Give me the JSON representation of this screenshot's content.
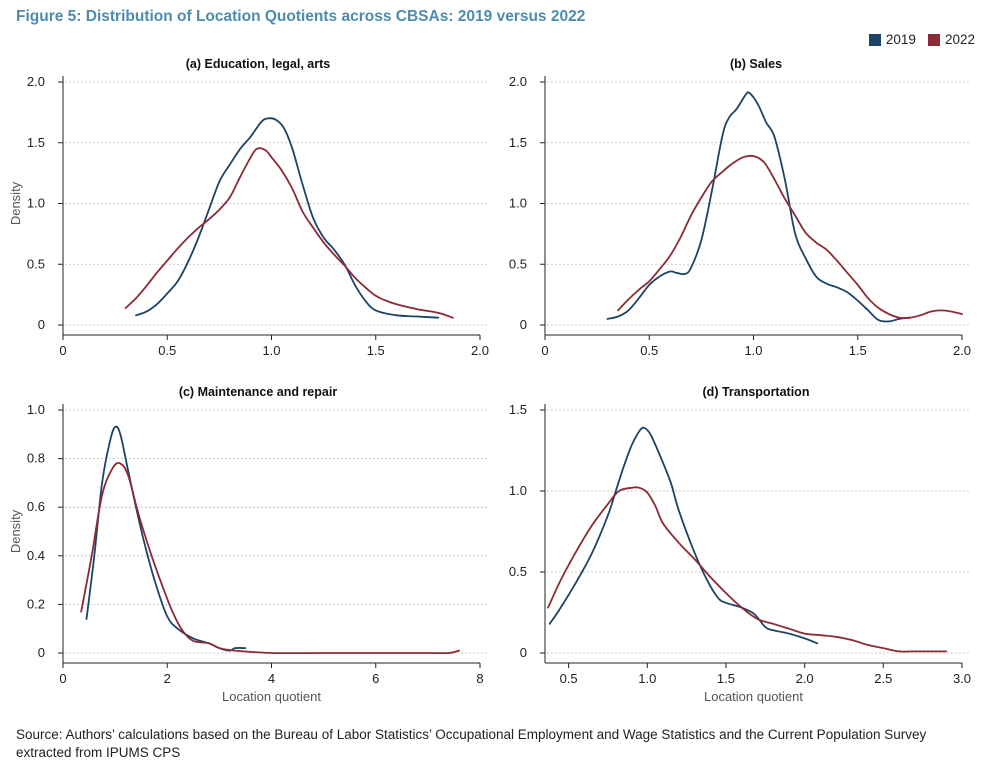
{
  "title": "Figure 5: Distribution of Location Quotients across CBSAs: 2019 versus 2022",
  "colors": {
    "title": "#4e8cab",
    "series_2019": "#1d4466",
    "series_2022": "#8c2a35",
    "grid": "#bdbdbd",
    "axis": "#222222"
  },
  "legend": [
    {
      "label": "2019",
      "color": "#1d4466"
    },
    {
      "label": "2022",
      "color": "#8c2a35"
    }
  ],
  "source": "Source: Authors’ calculations based on the Bureau of Labor Statistics’ Occupational Employment and Wage Statistics and the Current Population Survey extracted from IPUMS CPS",
  "chart_data": [
    {
      "type": "line",
      "title": "(a) Education, legal, arts",
      "xlabel": "",
      "ylabel": "Density",
      "xlim": [
        0,
        2.0
      ],
      "ylim": [
        0,
        2.0
      ],
      "xticks": [
        0,
        0.5,
        1.0,
        1.5,
        2.0
      ],
      "xtick_labels": [
        "0",
        "0.5",
        "1.0",
        "1.5",
        "2.0"
      ],
      "yticks": [
        0,
        0.5,
        1.0,
        1.5,
        2.0
      ],
      "ytick_labels": [
        "0",
        "0.5",
        "1.0",
        "1.5",
        "2.0"
      ],
      "grid": true,
      "series": [
        {
          "name": "2019",
          "points": [
            [
              0.35,
              0.08
            ],
            [
              0.4,
              0.11
            ],
            [
              0.45,
              0.17
            ],
            [
              0.5,
              0.26
            ],
            [
              0.55,
              0.36
            ],
            [
              0.6,
              0.52
            ],
            [
              0.65,
              0.72
            ],
            [
              0.7,
              0.95
            ],
            [
              0.75,
              1.18
            ],
            [
              0.8,
              1.32
            ],
            [
              0.85,
              1.45
            ],
            [
              0.9,
              1.55
            ],
            [
              0.95,
              1.67
            ],
            [
              0.98,
              1.7
            ],
            [
              1.02,
              1.69
            ],
            [
              1.06,
              1.62
            ],
            [
              1.1,
              1.45
            ],
            [
              1.15,
              1.15
            ],
            [
              1.2,
              0.88
            ],
            [
              1.25,
              0.72
            ],
            [
              1.3,
              0.62
            ],
            [
              1.35,
              0.5
            ],
            [
              1.4,
              0.33
            ],
            [
              1.45,
              0.2
            ],
            [
              1.5,
              0.12
            ],
            [
              1.6,
              0.08
            ],
            [
              1.7,
              0.07
            ],
            [
              1.8,
              0.06
            ]
          ]
        },
        {
          "name": "2022",
          "points": [
            [
              0.3,
              0.14
            ],
            [
              0.35,
              0.22
            ],
            [
              0.4,
              0.32
            ],
            [
              0.45,
              0.43
            ],
            [
              0.5,
              0.53
            ],
            [
              0.55,
              0.63
            ],
            [
              0.6,
              0.72
            ],
            [
              0.65,
              0.8
            ],
            [
              0.7,
              0.87
            ],
            [
              0.75,
              0.95
            ],
            [
              0.8,
              1.05
            ],
            [
              0.85,
              1.22
            ],
            [
              0.9,
              1.38
            ],
            [
              0.93,
              1.45
            ],
            [
              0.97,
              1.44
            ],
            [
              1.0,
              1.38
            ],
            [
              1.05,
              1.27
            ],
            [
              1.1,
              1.12
            ],
            [
              1.15,
              0.93
            ],
            [
              1.2,
              0.8
            ],
            [
              1.25,
              0.68
            ],
            [
              1.3,
              0.58
            ],
            [
              1.35,
              0.49
            ],
            [
              1.4,
              0.39
            ],
            [
              1.45,
              0.31
            ],
            [
              1.5,
              0.24
            ],
            [
              1.55,
              0.2
            ],
            [
              1.6,
              0.17
            ],
            [
              1.7,
              0.13
            ],
            [
              1.8,
              0.1
            ],
            [
              1.87,
              0.06
            ]
          ]
        }
      ]
    },
    {
      "type": "line",
      "title": "(b) Sales",
      "xlabel": "",
      "ylabel": "",
      "xlim": [
        0,
        2.0
      ],
      "ylim": [
        0,
        2.0
      ],
      "xticks": [
        0,
        0.5,
        1.0,
        1.5,
        2.0
      ],
      "xtick_labels": [
        "0",
        "0.5",
        "1.0",
        "1.5",
        "2.0"
      ],
      "yticks": [
        0,
        0.5,
        1.0,
        1.5,
        2.0
      ],
      "ytick_labels": [
        "0",
        "0.5",
        "1.0",
        "1.5",
        "2.0"
      ],
      "grid": true,
      "series": [
        {
          "name": "2019",
          "points": [
            [
              0.3,
              0.05
            ],
            [
              0.35,
              0.07
            ],
            [
              0.4,
              0.12
            ],
            [
              0.45,
              0.22
            ],
            [
              0.5,
              0.33
            ],
            [
              0.55,
              0.4
            ],
            [
              0.6,
              0.44
            ],
            [
              0.63,
              0.43
            ],
            [
              0.67,
              0.42
            ],
            [
              0.7,
              0.47
            ],
            [
              0.75,
              0.7
            ],
            [
              0.8,
              1.1
            ],
            [
              0.85,
              1.55
            ],
            [
              0.88,
              1.7
            ],
            [
              0.92,
              1.78
            ],
            [
              0.96,
              1.89
            ],
            [
              0.98,
              1.91
            ],
            [
              1.02,
              1.82
            ],
            [
              1.06,
              1.67
            ],
            [
              1.1,
              1.55
            ],
            [
              1.15,
              1.2
            ],
            [
              1.2,
              0.75
            ],
            [
              1.25,
              0.55
            ],
            [
              1.3,
              0.4
            ],
            [
              1.35,
              0.34
            ],
            [
              1.4,
              0.31
            ],
            [
              1.45,
              0.27
            ],
            [
              1.5,
              0.2
            ],
            [
              1.55,
              0.12
            ],
            [
              1.6,
              0.04
            ],
            [
              1.65,
              0.03
            ],
            [
              1.7,
              0.05
            ],
            [
              1.75,
              0.06
            ]
          ]
        },
        {
          "name": "2022",
          "points": [
            [
              0.35,
              0.12
            ],
            [
              0.4,
              0.21
            ],
            [
              0.45,
              0.29
            ],
            [
              0.5,
              0.36
            ],
            [
              0.55,
              0.46
            ],
            [
              0.6,
              0.57
            ],
            [
              0.65,
              0.72
            ],
            [
              0.7,
              0.9
            ],
            [
              0.75,
              1.05
            ],
            [
              0.8,
              1.18
            ],
            [
              0.85,
              1.26
            ],
            [
              0.9,
              1.33
            ],
            [
              0.95,
              1.38
            ],
            [
              1.0,
              1.39
            ],
            [
              1.05,
              1.34
            ],
            [
              1.1,
              1.2
            ],
            [
              1.15,
              1.04
            ],
            [
              1.2,
              0.9
            ],
            [
              1.25,
              0.76
            ],
            [
              1.3,
              0.68
            ],
            [
              1.35,
              0.62
            ],
            [
              1.4,
              0.53
            ],
            [
              1.45,
              0.43
            ],
            [
              1.5,
              0.33
            ],
            [
              1.55,
              0.22
            ],
            [
              1.6,
              0.14
            ],
            [
              1.65,
              0.09
            ],
            [
              1.7,
              0.06
            ],
            [
              1.75,
              0.06
            ],
            [
              1.8,
              0.08
            ],
            [
              1.85,
              0.11
            ],
            [
              1.9,
              0.12
            ],
            [
              1.95,
              0.11
            ],
            [
              2.0,
              0.09
            ]
          ]
        }
      ]
    },
    {
      "type": "line",
      "title": "(c) Maintenance and repair",
      "xlabel": "Location quotient",
      "ylabel": "Density",
      "xlim": [
        0,
        8
      ],
      "ylim": [
        0,
        1.0
      ],
      "xticks": [
        0,
        2,
        4,
        6,
        8
      ],
      "xtick_labels": [
        "0",
        "2",
        "4",
        "6",
        "8"
      ],
      "yticks": [
        0,
        0.2,
        0.4,
        0.6,
        0.8,
        1.0
      ],
      "ytick_labels": [
        "0",
        "0.2",
        "0.4",
        "0.6",
        "0.8",
        "1.0"
      ],
      "grid": true,
      "series": [
        {
          "name": "2019",
          "points": [
            [
              0.45,
              0.14
            ],
            [
              0.6,
              0.4
            ],
            [
              0.75,
              0.7
            ],
            [
              0.9,
              0.87
            ],
            [
              1.0,
              0.93
            ],
            [
              1.1,
              0.9
            ],
            [
              1.25,
              0.75
            ],
            [
              1.4,
              0.6
            ],
            [
              1.6,
              0.42
            ],
            [
              1.8,
              0.27
            ],
            [
              2.0,
              0.15
            ],
            [
              2.2,
              0.1
            ],
            [
              2.5,
              0.06
            ],
            [
              2.8,
              0.04
            ],
            [
              3.0,
              0.02
            ],
            [
              3.2,
              0.01
            ],
            [
              3.3,
              0.02
            ],
            [
              3.5,
              0.02
            ]
          ]
        },
        {
          "name": "2022",
          "points": [
            [
              0.35,
              0.17
            ],
            [
              0.55,
              0.4
            ],
            [
              0.75,
              0.65
            ],
            [
              0.95,
              0.76
            ],
            [
              1.1,
              0.78
            ],
            [
              1.25,
              0.73
            ],
            [
              1.45,
              0.57
            ],
            [
              1.7,
              0.4
            ],
            [
              1.9,
              0.28
            ],
            [
              2.1,
              0.17
            ],
            [
              2.3,
              0.09
            ],
            [
              2.5,
              0.05
            ],
            [
              2.8,
              0.04
            ],
            [
              3.0,
              0.02
            ],
            [
              3.3,
              0.01
            ],
            [
              4.0,
              0.0
            ],
            [
              5.0,
              0.0
            ],
            [
              6.0,
              0.0
            ],
            [
              7.0,
              0.0
            ],
            [
              7.4,
              0.0
            ],
            [
              7.6,
              0.01
            ]
          ]
        }
      ]
    },
    {
      "type": "line",
      "title": "(d) Transportation",
      "xlabel": "Location quotient",
      "ylabel": "",
      "xlim": [
        0.35,
        3.0
      ],
      "ylim": [
        0,
        1.5
      ],
      "xticks": [
        0.5,
        1.0,
        1.5,
        2.0,
        2.5,
        3.0
      ],
      "xtick_labels": [
        "0.5",
        "1.0",
        "1.5",
        "2.0",
        "2.5",
        "3.0"
      ],
      "yticks": [
        0,
        0.5,
        1.0,
        1.5
      ],
      "ytick_labels": [
        "0",
        "0.5",
        "1.0",
        "1.5"
      ],
      "grid": true,
      "series": [
        {
          "name": "2019",
          "points": [
            [
              0.38,
              0.18
            ],
            [
              0.45,
              0.28
            ],
            [
              0.55,
              0.44
            ],
            [
              0.65,
              0.62
            ],
            [
              0.75,
              0.85
            ],
            [
              0.8,
              1.0
            ],
            [
              0.85,
              1.15
            ],
            [
              0.9,
              1.28
            ],
            [
              0.95,
              1.37
            ],
            [
              0.98,
              1.39
            ],
            [
              1.02,
              1.35
            ],
            [
              1.08,
              1.22
            ],
            [
              1.15,
              1.05
            ],
            [
              1.2,
              0.88
            ],
            [
              1.3,
              0.62
            ],
            [
              1.38,
              0.45
            ],
            [
              1.45,
              0.34
            ],
            [
              1.5,
              0.31
            ],
            [
              1.6,
              0.28
            ],
            [
              1.68,
              0.24
            ],
            [
              1.75,
              0.16
            ],
            [
              1.8,
              0.14
            ],
            [
              1.9,
              0.12
            ],
            [
              2.0,
              0.09
            ],
            [
              2.08,
              0.06
            ]
          ]
        },
        {
          "name": "2022",
          "points": [
            [
              0.37,
              0.28
            ],
            [
              0.45,
              0.45
            ],
            [
              0.55,
              0.63
            ],
            [
              0.65,
              0.79
            ],
            [
              0.75,
              0.92
            ],
            [
              0.82,
              1.0
            ],
            [
              0.9,
              1.02
            ],
            [
              0.95,
              1.02
            ],
            [
              1.0,
              0.99
            ],
            [
              1.05,
              0.91
            ],
            [
              1.1,
              0.8
            ],
            [
              1.2,
              0.68
            ],
            [
              1.3,
              0.58
            ],
            [
              1.4,
              0.47
            ],
            [
              1.5,
              0.37
            ],
            [
              1.6,
              0.28
            ],
            [
              1.7,
              0.21
            ],
            [
              1.8,
              0.18
            ],
            [
              1.9,
              0.15
            ],
            [
              2.0,
              0.12
            ],
            [
              2.1,
              0.11
            ],
            [
              2.2,
              0.1
            ],
            [
              2.3,
              0.08
            ],
            [
              2.4,
              0.05
            ],
            [
              2.5,
              0.03
            ],
            [
              2.6,
              0.01
            ],
            [
              2.7,
              0.01
            ],
            [
              2.9,
              0.01
            ]
          ]
        }
      ]
    }
  ]
}
